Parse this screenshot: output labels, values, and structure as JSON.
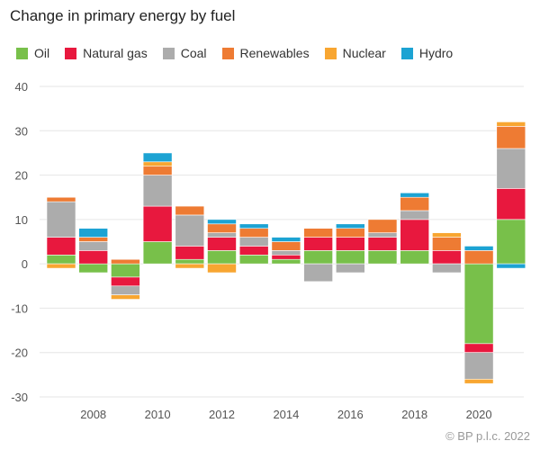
{
  "title": "Change in primary energy by fuel",
  "footer": "© BP p.l.c. 2022",
  "chart_data": {
    "type": "bar",
    "stacked": true,
    "title": "Change in primary energy by fuel",
    "xlabel": "",
    "ylabel": "",
    "ylim": [
      -30,
      40
    ],
    "yticks": [
      -30,
      -20,
      -10,
      0,
      10,
      20,
      30,
      40
    ],
    "x": [
      2007,
      2008,
      2009,
      2010,
      2011,
      2012,
      2013,
      2014,
      2015,
      2016,
      2017,
      2018,
      2019,
      2020,
      2021
    ],
    "xticks": [
      2008,
      2010,
      2012,
      2014,
      2016,
      2018,
      2020
    ],
    "grid": true,
    "legend_position": "top",
    "series": [
      {
        "name": "Oil",
        "color": "#78c04a",
        "values": [
          2,
          -2,
          -3,
          5,
          1,
          3,
          2,
          1,
          3,
          3,
          3,
          3,
          0,
          -18,
          10
        ]
      },
      {
        "name": "Natural gas",
        "color": "#e8183e",
        "values": [
          4,
          3,
          -2,
          8,
          3,
          3,
          2,
          1,
          3,
          3,
          3,
          7,
          3,
          -2,
          7
        ]
      },
      {
        "name": "Coal",
        "color": "#acacac",
        "values": [
          8,
          2,
          -2,
          7,
          7,
          1,
          2,
          1,
          -4,
          -2,
          1,
          2,
          -2,
          -6,
          9
        ]
      },
      {
        "name": "Renewables",
        "color": "#ee7b33",
        "values": [
          1,
          1,
          1,
          2,
          2,
          2,
          2,
          2,
          2,
          2,
          3,
          3,
          3,
          3,
          5
        ]
      },
      {
        "name": "Nuclear",
        "color": "#f8a631",
        "values": [
          -1,
          0,
          -1,
          1,
          -1,
          -2,
          0,
          0,
          0,
          0,
          0,
          0,
          1,
          -1,
          1
        ]
      },
      {
        "name": "Hydro",
        "color": "#1ca3d3",
        "values": [
          0,
          2,
          0,
          2,
          0,
          1,
          1,
          1,
          0,
          1,
          0,
          1,
          0,
          1,
          -1
        ]
      }
    ]
  }
}
